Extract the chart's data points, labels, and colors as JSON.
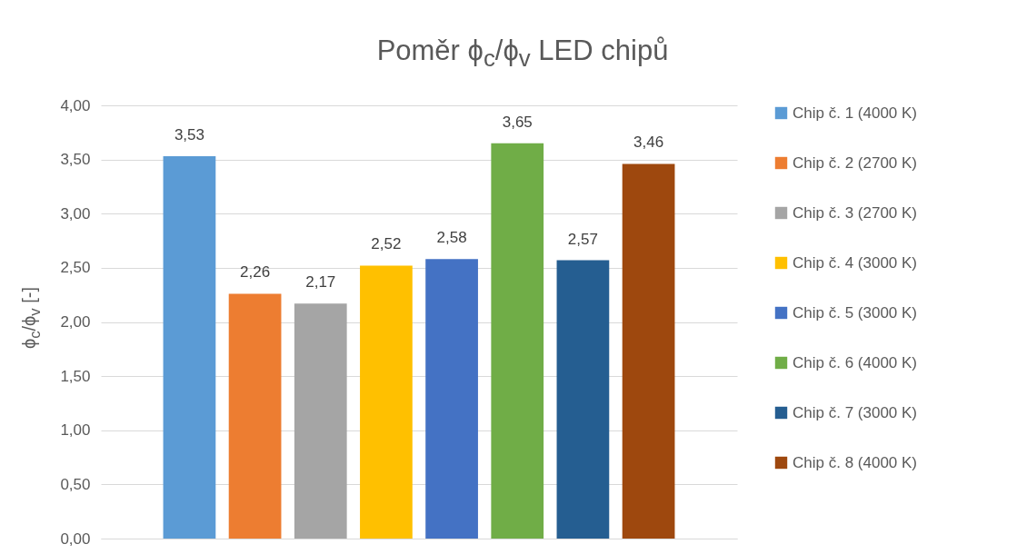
{
  "chart_data": {
    "type": "bar",
    "title": "Poměr ϕ$_{c}$/ϕ$_{v}$ LED chipů",
    "ylabel": "ϕ$_{c}$/ϕ$_{v}$ [-]",
    "categories": [
      null
    ],
    "series": [
      {
        "name": "Chip č. 1 (4000 K)",
        "color": "#5b9bd5",
        "values": [
          3.53
        ],
        "value_labels": [
          "3,53"
        ]
      },
      {
        "name": "Chip č. 2 (2700 K)",
        "color": "#ed7d31",
        "values": [
          2.26
        ],
        "value_labels": [
          "2,26"
        ]
      },
      {
        "name": "Chip č. 3 (2700 K)",
        "color": "#a5a5a5",
        "values": [
          2.17
        ],
        "value_labels": [
          "2,17"
        ]
      },
      {
        "name": "Chip č. 4 (3000 K)",
        "color": "#ffc000",
        "values": [
          2.52
        ],
        "value_labels": [
          "2,52"
        ]
      },
      {
        "name": "Chip č. 5 (3000 K)",
        "color": "#4472c4",
        "values": [
          2.58
        ],
        "value_labels": [
          "2,58"
        ]
      },
      {
        "name": "Chip č. 6 (4000 K)",
        "color": "#70ad47",
        "values": [
          3.65
        ],
        "value_labels": [
          "3,65"
        ]
      },
      {
        "name": "Chip č. 7 (3000 K)",
        "color": "#255e91",
        "values": [
          2.57
        ],
        "value_labels": [
          "2,57"
        ]
      },
      {
        "name": "Chip č. 8 (4000 K)",
        "color": "#9e480e",
        "values": [
          3.46
        ],
        "value_labels": [
          "3,46"
        ]
      }
    ],
    "ylim": [
      0,
      4
    ],
    "yticks": [
      {
        "value": 0,
        "label": "0,00"
      },
      {
        "value": 0.5,
        "label": "0,50"
      },
      {
        "value": 1,
        "label": "1,00"
      },
      {
        "value": 1.5,
        "label": "1,50"
      },
      {
        "value": 2,
        "label": "2,00"
      },
      {
        "value": 2.5,
        "label": "2,50"
      },
      {
        "value": 3,
        "label": "3,00"
      },
      {
        "value": 3.5,
        "label": "3,50"
      },
      {
        "value": 4,
        "label": "4,00"
      }
    ],
    "grid": "y",
    "legend": "right"
  }
}
